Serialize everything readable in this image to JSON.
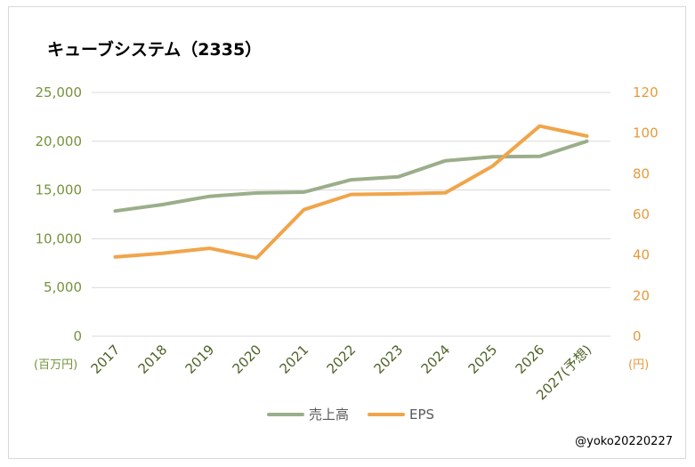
{
  "chart_data": {
    "type": "line",
    "title": "キューブシステム（2335）",
    "categories": [
      "2017",
      "2018",
      "2019",
      "2020",
      "2021",
      "2022",
      "2023",
      "2024",
      "2025",
      "2026",
      "2027(予想)"
    ],
    "series": [
      {
        "name": "売上高",
        "axis": "left",
        "color": "#9bae8a",
        "values": [
          12850,
          13500,
          14350,
          14700,
          14780,
          16050,
          16350,
          18000,
          18400,
          18450,
          20000
        ]
      },
      {
        "name": "EPS",
        "axis": "right",
        "color": "#f0a54a",
        "values": [
          39,
          40.8,
          43.3,
          38.6,
          62.3,
          69.8,
          70.1,
          70.6,
          83.8,
          103.5,
          98.6
        ]
      }
    ],
    "left_axis": {
      "unit_label": "(百万円)",
      "ylim": [
        0,
        25000
      ],
      "ticks": [
        "0",
        "5,000",
        "10,000",
        "15,000",
        "20,000",
        "25,000"
      ],
      "tick_values": [
        0,
        5000,
        10000,
        15000,
        20000,
        25000
      ],
      "color": "#76933c"
    },
    "right_axis": {
      "unit_label": "(円)",
      "ylim": [
        0,
        120
      ],
      "ticks": [
        "0",
        "20",
        "40",
        "60",
        "80",
        "100",
        "120"
      ],
      "tick_values": [
        0,
        20,
        40,
        60,
        80,
        100,
        120
      ],
      "color": "#e69a3d"
    },
    "grid": true,
    "legend_position": "bottom"
  },
  "credit": "@yoko20220227"
}
